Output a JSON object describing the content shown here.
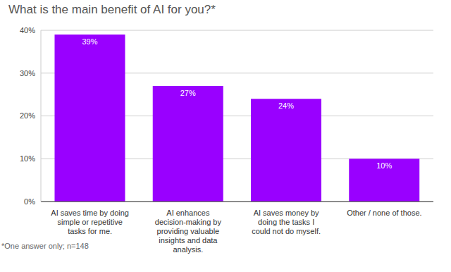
{
  "chart_data": {
    "type": "bar",
    "title": "What is the main benefit of AI for you?*",
    "annotations": [
      "*One answer only; n=148"
    ],
    "categories": [
      "AI saves time by doing simple or repetitive tasks for me.",
      "AI enhances decision-making by providing valuable insights and data analysis.",
      "AI saves money by doing the tasks I could not do myself.",
      "Other / none of those."
    ],
    "values": [
      39,
      27,
      24,
      10
    ],
    "value_labels": [
      "39%",
      "27%",
      "24%",
      "10%"
    ],
    "data_labels": true,
    "color": "#9900ff",
    "ylim": [
      0,
      40
    ],
    "yticks": [
      {
        "value": 0,
        "label": "0%"
      },
      {
        "value": 10,
        "label": "10%"
      },
      {
        "value": 20,
        "label": "20%"
      },
      {
        "value": 30,
        "label": "30%"
      },
      {
        "value": 40,
        "label": "40%"
      }
    ],
    "grid": true
  }
}
